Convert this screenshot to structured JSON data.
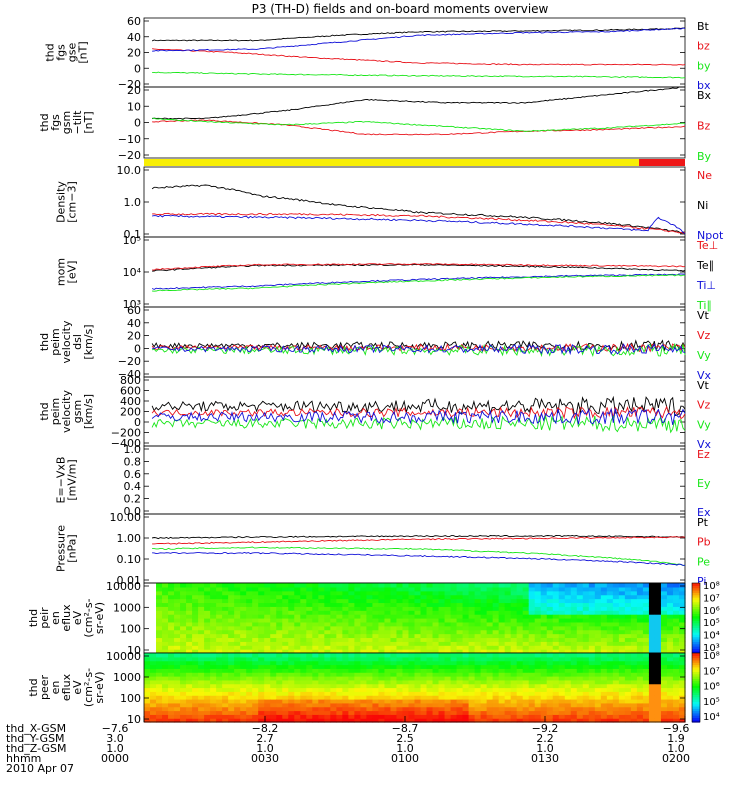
{
  "title": "P3 (TH-D) fields and on-board moments overview",
  "colors": {
    "black": "#000000",
    "red": "#e8121a",
    "green": "#19e619",
    "blue": "#1010d8",
    "yellow": "#f7ee06",
    "barred": "#ee1818"
  },
  "chart_data": [
    {
      "id": "fgs-gse",
      "type": "line",
      "ylabel": [
        "thd",
        "fgs",
        "gse",
        "[nT]"
      ],
      "ylim": [
        -20,
        60
      ],
      "yticks": [
        "60",
        "40",
        "20",
        "0",
        "−20"
      ],
      "legend": [
        {
          "name": "Bt",
          "color": "black"
        },
        {
          "name": "bz",
          "color": "red"
        },
        {
          "name": "by",
          "color": "green"
        },
        {
          "name": "bx",
          "color": "blue"
        }
      ],
      "series": [
        {
          "name": "Bt",
          "color": "black",
          "x": [
            0,
            0.2,
            0.35,
            0.5,
            0.7,
            0.85,
            1
          ],
          "y": [
            34,
            34,
            40,
            44,
            45,
            46,
            48
          ]
        },
        {
          "name": "bz",
          "color": "red",
          "x": [
            0,
            0.15,
            0.3,
            0.5,
            0.7,
            0.85,
            1
          ],
          "y": [
            24,
            20,
            14,
            8,
            6,
            6,
            6
          ]
        },
        {
          "name": "by",
          "color": "green",
          "x": [
            0,
            0.2,
            0.5,
            0.8,
            1
          ],
          "y": [
            -3,
            -5,
            -7,
            -8,
            -9
          ]
        },
        {
          "name": "bx",
          "color": "blue",
          "x": [
            0,
            0.2,
            0.35,
            0.5,
            0.7,
            0.85,
            1
          ],
          "y": [
            22,
            24,
            32,
            40,
            43,
            44,
            48
          ]
        }
      ]
    },
    {
      "id": "fgs-gsm-tilt",
      "type": "line",
      "ylabel": [
        "thd",
        "fgs",
        "gsm",
        "−tilt",
        "[nT]"
      ],
      "ylim": [
        -25,
        20
      ],
      "yticks": [
        "20",
        "10",
        "0",
        "−10",
        "−20"
      ],
      "legend": [
        {
          "name": "Bx",
          "color": "black"
        },
        {
          "name": "Bz",
          "color": "red"
        },
        {
          "name": "By",
          "color": "green"
        }
      ],
      "series": [
        {
          "name": "Bx",
          "color": "black",
          "x": [
            0,
            0.1,
            0.25,
            0.4,
            0.55,
            0.7,
            0.85,
            1
          ],
          "y": [
            0,
            0,
            5,
            12,
            10,
            10,
            15,
            20
          ]
        },
        {
          "name": "Bz",
          "color": "red",
          "x": [
            0,
            0.1,
            0.25,
            0.4,
            0.55,
            0.7,
            0.85,
            1
          ],
          "y": [
            -2,
            -1,
            -4,
            -10,
            -10,
            -8,
            -7,
            -5
          ]
        },
        {
          "name": "By",
          "color": "green",
          "x": [
            0,
            0.1,
            0.25,
            0.4,
            0.55,
            0.7,
            0.85,
            1
          ],
          "y": [
            0,
            -2,
            -4,
            -2,
            -5,
            -8,
            -6,
            -3
          ]
        }
      ]
    },
    {
      "id": "density",
      "type": "line",
      "scale": "log",
      "ylabel": [
        "Density",
        "[cm−3]"
      ],
      "ylim": [
        0.1,
        10
      ],
      "yticks": [
        "10.0",
        "1.0",
        "0.1"
      ],
      "legend": [
        {
          "name": "Ne",
          "color": "red"
        },
        {
          "name": "Ni",
          "color": "black"
        },
        {
          "name": "Npot",
          "color": "blue"
        }
      ],
      "series": [
        {
          "name": "Ni",
          "color": "black",
          "x": [
            0,
            0.1,
            0.2,
            0.35,
            0.5,
            0.65,
            0.85,
            1
          ],
          "y": [
            2.5,
            3.0,
            1.5,
            0.8,
            0.5,
            0.4,
            0.25,
            0.13
          ]
        },
        {
          "name": "Ne",
          "color": "red",
          "x": [
            0,
            0.3,
            0.5,
            0.8,
            1
          ],
          "y": [
            0.45,
            0.45,
            0.4,
            0.25,
            0.13
          ]
        },
        {
          "name": "Npot",
          "color": "blue",
          "x": [
            0,
            0.3,
            0.5,
            0.8,
            0.93,
            0.95,
            1
          ],
          "y": [
            0.4,
            0.35,
            0.3,
            0.2,
            0.15,
            0.35,
            0.12
          ]
        }
      ]
    },
    {
      "id": "temperature",
      "type": "line",
      "scale": "log",
      "ylabel": [
        "mom",
        "[eV]"
      ],
      "ylim": [
        100,
        100000
      ],
      "yticks": [
        "10⁵",
        "10⁴",
        "10³"
      ],
      "legend": [
        {
          "name": "Te⊥",
          "color": "red"
        },
        {
          "name": "Te∥",
          "color": "black"
        },
        {
          "name": "Ti⊥",
          "color": "blue"
        },
        {
          "name": "Ti∥",
          "color": "green"
        }
      ],
      "series": [
        {
          "name": "Te∥",
          "color": "black",
          "x": [
            0,
            0.2,
            0.5,
            0.8,
            1
          ],
          "y": [
            3500,
            6000,
            6500,
            5000,
            3500
          ]
        },
        {
          "name": "Te⊥",
          "color": "red",
          "x": [
            0,
            0.2,
            0.5,
            0.8,
            1
          ],
          "y": [
            4000,
            6500,
            7000,
            6000,
            5500
          ]
        },
        {
          "name": "Ti⊥",
          "color": "blue",
          "x": [
            0,
            0.2,
            0.5,
            0.8,
            1
          ],
          "y": [
            600,
            800,
            1500,
            2200,
            2500
          ]
        },
        {
          "name": "Ti∥",
          "color": "green",
          "x": [
            0,
            0.2,
            0.5,
            0.8,
            1
          ],
          "y": [
            500,
            650,
            1300,
            2000,
            2300
          ]
        }
      ]
    },
    {
      "id": "velocity-dsl",
      "type": "line",
      "ylabel": [
        "thd",
        "peim",
        "velocity",
        "dsl",
        "[km/s]"
      ],
      "ylim": [
        -40,
        60
      ],
      "yticks": [
        "60",
        "40",
        "20",
        "0",
        "−20",
        "−40"
      ],
      "legend": [
        {
          "name": "Vt",
          "color": "black"
        },
        {
          "name": "Vz",
          "color": "red"
        },
        {
          "name": "Vy",
          "color": "green"
        },
        {
          "name": "Vx",
          "color": "blue"
        }
      ],
      "series": [
        {
          "name": "Vt",
          "color": "black",
          "center": 5,
          "noise": 5
        },
        {
          "name": "Vz",
          "color": "red",
          "center": 2,
          "noise": 4
        },
        {
          "name": "Vy",
          "color": "green",
          "center": -2,
          "noise": 6
        },
        {
          "name": "Vx",
          "color": "blue",
          "center": 0,
          "noise": 5
        }
      ]
    },
    {
      "id": "velocity-gsm",
      "type": "line",
      "ylabel": [
        "thd",
        "peim",
        "velocity",
        "gsm",
        "[km/s]"
      ],
      "ylim": [
        -500,
        800
      ],
      "yticks": [
        "800",
        "600",
        "400",
        "200",
        "0",
        "−200",
        "−400"
      ],
      "legend": [
        {
          "name": "Vt",
          "color": "black"
        },
        {
          "name": "Vz",
          "color": "red"
        },
        {
          "name": "Vy",
          "color": "green"
        },
        {
          "name": "Vx",
          "color": "blue"
        }
      ],
      "series": [
        {
          "name": "Vt",
          "color": "black",
          "center": 250,
          "noise": 120
        },
        {
          "name": "Vz",
          "color": "red",
          "center": 130,
          "noise": 80
        },
        {
          "name": "Vy",
          "color": "green",
          "center": -80,
          "noise": 110
        },
        {
          "name": "Vx",
          "color": "blue",
          "center": 50,
          "noise": 110
        }
      ]
    },
    {
      "id": "efield",
      "type": "line",
      "ylabel": [
        "E=−VxB",
        "[mV/m]"
      ],
      "ylim": [
        0,
        1
      ],
      "yticks": [
        "1.0",
        "0.8",
        "0.6",
        "0.4",
        "0.2",
        "0.0"
      ],
      "legend": [
        {
          "name": "Ez",
          "color": "red"
        },
        {
          "name": "Ey",
          "color": "green"
        },
        {
          "name": "Ex",
          "color": "blue"
        }
      ],
      "series": []
    },
    {
      "id": "pressure",
      "type": "line",
      "scale": "log",
      "ylabel": [
        "Pressure",
        "[nPa]"
      ],
      "ylim": [
        0.01,
        10
      ],
      "yticks": [
        "10.00",
        "1.00",
        "0.10",
        "0.01"
      ],
      "legend": [
        {
          "name": "Pt",
          "color": "black"
        },
        {
          "name": "Pb",
          "color": "red"
        },
        {
          "name": "Pe",
          "color": "green"
        },
        {
          "name": "Pi",
          "color": "blue"
        }
      ],
      "series": [
        {
          "name": "Pt",
          "color": "black",
          "x": [
            0,
            0.2,
            0.5,
            0.8,
            1
          ],
          "y": [
            0.9,
            1.0,
            1.1,
            1.1,
            1.0
          ]
        },
        {
          "name": "Pb",
          "color": "red",
          "x": [
            0,
            0.2,
            0.5,
            0.8,
            1
          ],
          "y": [
            0.5,
            0.6,
            0.8,
            0.9,
            1.0
          ]
        },
        {
          "name": "Pe",
          "color": "green",
          "x": [
            0,
            0.2,
            0.5,
            0.8,
            1
          ],
          "y": [
            0.3,
            0.35,
            0.3,
            0.15,
            0.06
          ]
        },
        {
          "name": "Pi",
          "color": "blue",
          "x": [
            0,
            0.2,
            0.5,
            0.8,
            1
          ],
          "y": [
            0.2,
            0.2,
            0.15,
            0.1,
            0.06
          ]
        }
      ]
    },
    {
      "id": "peir-spectrogram",
      "type": "heatmap",
      "scale": "log",
      "ylabel": [
        "thd",
        "peir",
        "en",
        "eflux",
        "eV",
        "(cm²-s-",
        "sr-eV)"
      ],
      "ylim": [
        7,
        20000
      ],
      "yticks": [
        "10000",
        "1000",
        "100",
        "10"
      ],
      "colorbar": [
        "10⁸",
        "10⁷",
        "10⁶",
        "10⁵",
        "10⁴",
        "10³"
      ]
    },
    {
      "id": "peer-spectrogram",
      "type": "heatmap",
      "scale": "log",
      "ylabel": [
        "thd",
        "peer",
        "en",
        "eflux",
        "eV",
        "(cm²-s-",
        "sr-eV)"
      ],
      "ylim": [
        7,
        20000
      ],
      "yticks": [
        "10000",
        "1000",
        "100",
        "10"
      ],
      "colorbar": [
        "10⁸",
        "10⁷",
        "10⁶",
        "10⁵",
        "10⁴"
      ]
    }
  ],
  "x_axis": {
    "rows": [
      {
        "label": "thd_X-GSM",
        "values": [
          "−7.6",
          "−8.2",
          "−8.7",
          "−9.2",
          "−9.6"
        ]
      },
      {
        "label": "thd_Y-GSM",
        "values": [
          "3.0",
          "2.7",
          "2.5",
          "2.2",
          "1.9"
        ]
      },
      {
        "label": "thd_Z-GSM",
        "values": [
          "1.0",
          "1.0",
          "1.0",
          "1.0",
          "1.0"
        ]
      },
      {
        "label": "hhmm",
        "values": [
          "0000",
          "0030",
          "0100",
          "0130",
          "0200"
        ]
      }
    ],
    "date": "2010 Apr 07"
  }
}
